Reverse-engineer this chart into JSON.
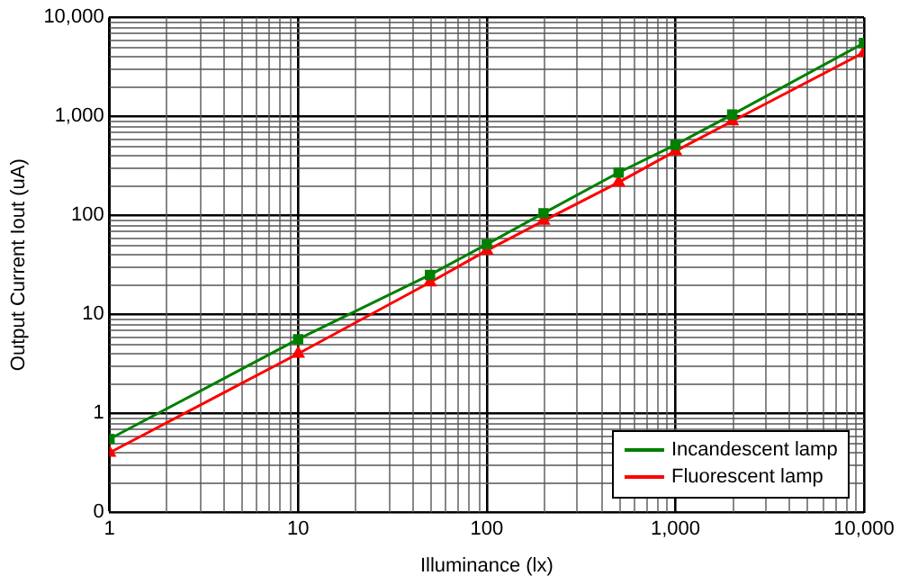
{
  "chart_data": {
    "type": "line",
    "xlabel": "Illuminance (lx)",
    "ylabel": "Output Current Iout (uA)",
    "log": "xy",
    "grid": true,
    "legend": "bottom right",
    "xlim": [
      1,
      10000
    ],
    "xticks": [
      1,
      10,
      100,
      {
        "value": 1000,
        "label": "1,000"
      },
      {
        "value": 10000,
        "label": "10,000"
      }
    ],
    "ylim": [
      0.1,
      10000
    ],
    "yticks": [
      {
        "value": 0.1,
        "label": "0"
      },
      1,
      10,
      100,
      {
        "value": 1000,
        "label": "1,000"
      },
      {
        "value": 10000,
        "label": "10,000"
      }
    ],
    "x": [
      1,
      10,
      50,
      100,
      200,
      500,
      1000,
      2000,
      10000
    ],
    "series": [
      {
        "name": "Incandescent lamp",
        "color": "#008000",
        "marker": "square",
        "values": [
          0.55,
          5.6,
          25,
          51,
          105,
          270,
          515,
          1040,
          5500
        ]
      },
      {
        "name": "Fluorescent lamp",
        "color": "#ff0000",
        "marker": "triangle",
        "values": [
          0.4,
          4.0,
          21,
          44,
          88,
          215,
          445,
          890,
          4400
        ]
      }
    ]
  }
}
